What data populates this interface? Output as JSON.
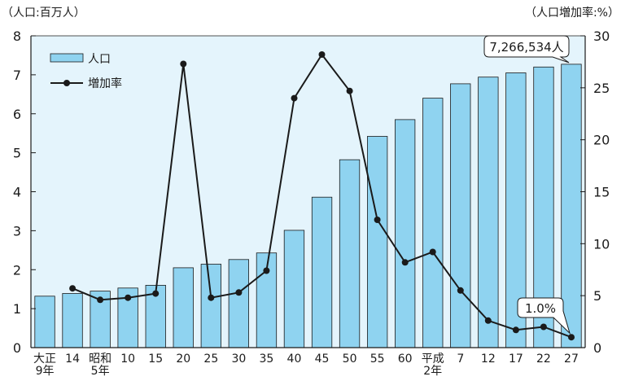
{
  "chart_data": {
    "type": "bar",
    "title": "",
    "xlabel": "",
    "ylabel_left": "（人口:百万人）",
    "ylabel_right": "（人口増加率:%）",
    "ylim_left": [
      0,
      8
    ],
    "ylim_right": [
      0,
      30
    ],
    "yticks_left": [
      "0",
      "1",
      "2",
      "3",
      "4",
      "5",
      "6",
      "7",
      "8"
    ],
    "yticks_right": [
      "0",
      "5",
      "10",
      "15",
      "20",
      "25",
      "30"
    ],
    "categories": [
      [
        "大正",
        "9年"
      ],
      [
        "14"
      ],
      [
        "昭和",
        "5年"
      ],
      [
        "10"
      ],
      [
        "15"
      ],
      [
        "20"
      ],
      [
        "25"
      ],
      [
        "30"
      ],
      [
        "35"
      ],
      [
        "40"
      ],
      [
        "45"
      ],
      [
        "50"
      ],
      [
        "55"
      ],
      [
        "60"
      ],
      [
        "平成",
        "2年"
      ],
      [
        "7"
      ],
      [
        "12"
      ],
      [
        "17"
      ],
      [
        "22"
      ],
      [
        "27"
      ]
    ],
    "series": [
      {
        "name": "人口",
        "type": "bar",
        "axis": "left",
        "values": [
          1.32,
          1.39,
          1.45,
          1.53,
          1.6,
          2.05,
          2.14,
          2.26,
          2.43,
          3.01,
          3.86,
          4.82,
          5.42,
          5.85,
          6.4,
          6.77,
          6.94,
          7.05,
          7.2,
          7.27
        ]
      },
      {
        "name": "増加率",
        "type": "line",
        "axis": "right",
        "values": [
          null,
          5.7,
          4.6,
          4.8,
          5.2,
          27.3,
          4.8,
          5.3,
          7.4,
          24.0,
          28.2,
          24.7,
          12.3,
          8.2,
          9.2,
          5.5,
          2.6,
          1.7,
          2.0,
          1.0
        ]
      }
    ],
    "annotations": [
      {
        "text": "7,266,534人",
        "category_index": 19,
        "series": "人口"
      },
      {
        "text": "1.0%",
        "category_index": 19,
        "series": "増加率"
      }
    ],
    "colors": {
      "bar_fill": "#8fd3f0",
      "bar_stroke": "#1a1a1a",
      "line": "#1a1a1a",
      "plot_bg": "#e4f4fc"
    },
    "legend_position": "top-left",
    "grid": false
  }
}
